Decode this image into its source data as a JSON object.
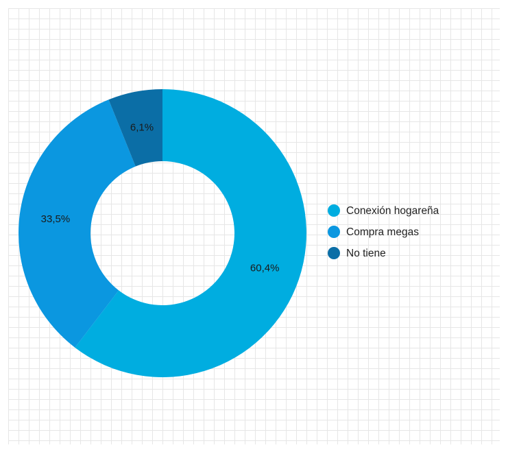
{
  "chart_data": {
    "type": "pie",
    "categories": [
      "Conexión hogareña",
      "Compra megas",
      "No tiene"
    ],
    "values": [
      60.4,
      33.5,
      6.1
    ],
    "labels": [
      "60,4%",
      "33,5%",
      "6,1%"
    ],
    "colors": [
      "#00ade0",
      "#0b97e0",
      "#0b6ea6"
    ],
    "legend": "right",
    "grid": true
  }
}
